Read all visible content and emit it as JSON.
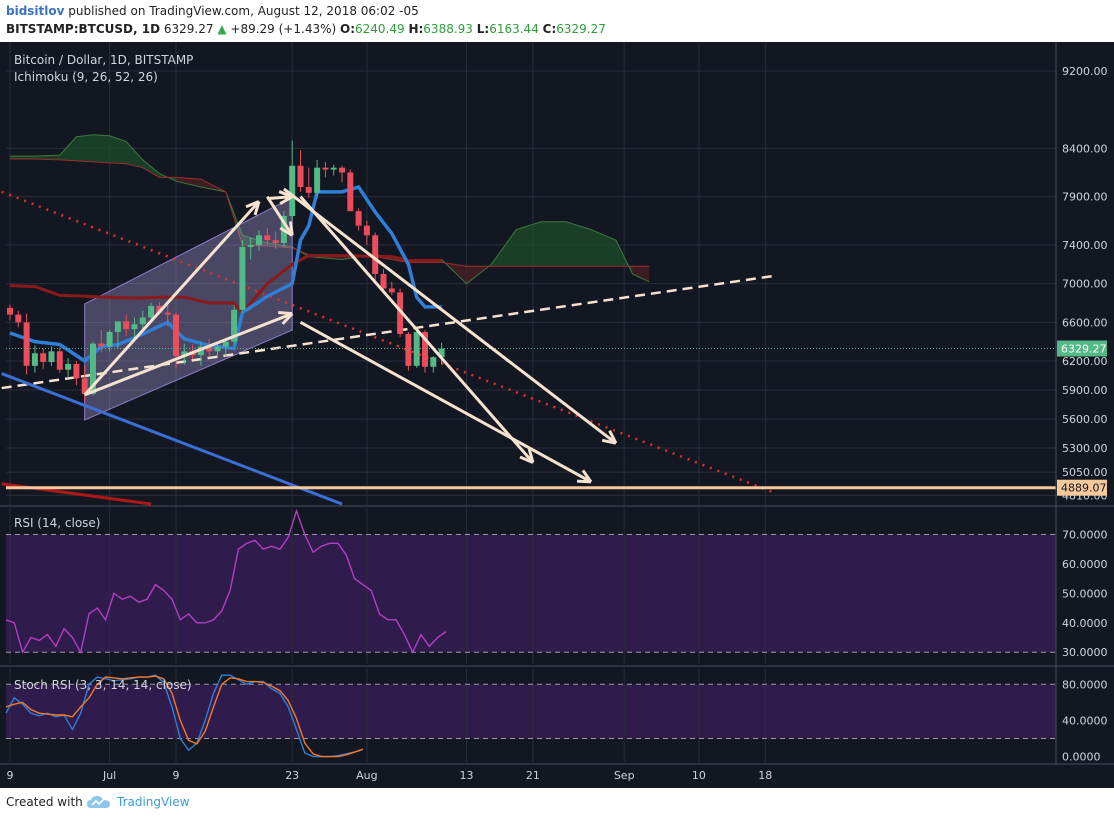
{
  "header": {
    "author": "bidsitlov",
    "published": "published on TradingView.com, August 12, 2018 06:02 -05",
    "symbol": "BITSTAMP:BTCUSD, 1D",
    "price": "6329.27",
    "change": "+89.29 (+1.43%)",
    "open_label": "O:",
    "open": "6240.49",
    "high_label": "H:",
    "high": "6388.93",
    "low_label": "L:",
    "low": "6163.44",
    "close_label": "C:",
    "close": "6329.27"
  },
  "footer": {
    "created": "Created with",
    "brand": "TradingView"
  },
  "colors": {
    "background": "#131722",
    "grid": "#2a2e39",
    "bull": "#53b987",
    "bear": "#eb4d5c",
    "tenkan": "#2f7ed8",
    "kijun": "#8b1a1a",
    "cloud_bull": "#1e4d2b",
    "cloud_bear": "#4d1f24",
    "rsi": "#b33fbf",
    "stoch_k": "#2f7ed8",
    "stoch_d": "#f07b2b",
    "support": "#f5c99b",
    "annotation": "#f6e3cf",
    "channel": "#b0a0e0"
  },
  "chart_data": [
    {
      "type": "candlestick",
      "title": "Bitcoin / Dollar, 1D, BITSTAMP",
      "indicator": "Ichimoku (9, 26, 52, 26)",
      "y_ticks": [
        9200,
        8400,
        7900,
        7400,
        7000,
        6600,
        6200,
        5900,
        5600,
        5300,
        5050,
        4810
      ],
      "ylim": [
        4700,
        9500
      ],
      "x_ticks": [
        {
          "label": "9",
          "day": 0
        },
        {
          "label": "Jul",
          "day": 12
        },
        {
          "label": "9",
          "day": 20
        },
        {
          "label": "23",
          "day": 34
        },
        {
          "label": "Aug",
          "day": 43
        },
        {
          "label": "13",
          "day": 55
        },
        {
          "label": "21",
          "day": 63
        },
        {
          "label": "Sep",
          "day": 74
        },
        {
          "label": "10",
          "day": 83
        },
        {
          "label": "18",
          "day": 91
        }
      ],
      "last_price": {
        "value": 6329.27,
        "label": "6329.27"
      },
      "support": {
        "value": 4889.07,
        "label": "4889.07"
      },
      "candles": [
        [
          6750,
          6780,
          6620,
          6680
        ],
        [
          6680,
          6720,
          6550,
          6600
        ],
        [
          6600,
          6690,
          6060,
          6150
        ],
        [
          6150,
          6360,
          6080,
          6280
        ],
        [
          6280,
          6330,
          6120,
          6190
        ],
        [
          6190,
          6350,
          6150,
          6300
        ],
        [
          6300,
          6340,
          6080,
          6110
        ],
        [
          6110,
          6230,
          6020,
          6170
        ],
        [
          6170,
          6200,
          5950,
          6020
        ],
        [
          6020,
          6150,
          5780,
          5860
        ],
        [
          5860,
          6400,
          5840,
          6380
        ],
        [
          6380,
          6520,
          6290,
          6350
        ],
        [
          6350,
          6520,
          6300,
          6500
        ],
        [
          6500,
          6600,
          6330,
          6610
        ],
        [
          6610,
          6680,
          6460,
          6530
        ],
        [
          6530,
          6650,
          6420,
          6580
        ],
        [
          6580,
          6720,
          6530,
          6650
        ],
        [
          6650,
          6800,
          6630,
          6770
        ],
        [
          6770,
          6810,
          6680,
          6700
        ],
        [
          6700,
          6780,
          6560,
          6680
        ],
        [
          6680,
          6700,
          6120,
          6250
        ],
        [
          6250,
          6380,
          6160,
          6300
        ],
        [
          6300,
          6370,
          6220,
          6260
        ],
        [
          6260,
          6400,
          6150,
          6350
        ],
        [
          6350,
          6430,
          6240,
          6300
        ],
        [
          6300,
          6380,
          6250,
          6350
        ],
        [
          6350,
          6420,
          6250,
          6400
        ],
        [
          6400,
          6780,
          6370,
          6730
        ],
        [
          6730,
          7450,
          6700,
          7380
        ],
        [
          7380,
          7480,
          7250,
          7400
        ],
        [
          7400,
          7550,
          7340,
          7500
        ],
        [
          7500,
          7580,
          7400,
          7450
        ],
        [
          7450,
          7540,
          7360,
          7420
        ],
        [
          7420,
          7750,
          7380,
          7700
        ],
        [
          7700,
          8480,
          7650,
          8220
        ],
        [
          8220,
          8380,
          7950,
          8000
        ],
        [
          8000,
          8200,
          7890,
          7940
        ],
        [
          7940,
          8280,
          7880,
          8200
        ],
        [
          8200,
          8260,
          8100,
          8180
        ],
        [
          8180,
          8230,
          8120,
          8200
        ],
        [
          8200,
          8220,
          8050,
          8150
        ],
        [
          8150,
          8180,
          7750,
          7750
        ],
        [
          7750,
          7780,
          7550,
          7600
        ],
        [
          7600,
          7650,
          7400,
          7500
        ],
        [
          7500,
          7530,
          7040,
          7100
        ],
        [
          7100,
          7150,
          6900,
          6950
        ],
        [
          6950,
          7020,
          6880,
          6910
        ],
        [
          6910,
          6950,
          6450,
          6480
        ],
        [
          6480,
          6500,
          6100,
          6150
        ],
        [
          6150,
          6550,
          6130,
          6500
        ],
        [
          6500,
          6520,
          6080,
          6140
        ],
        [
          6140,
          6250,
          6080,
          6240
        ],
        [
          6240,
          6389,
          6163,
          6329
        ]
      ],
      "tenkan": [
        [
          0,
          6490
        ],
        [
          3,
          6400
        ],
        [
          6,
          6370
        ],
        [
          9,
          6200
        ],
        [
          11,
          6350
        ],
        [
          13,
          6370
        ],
        [
          15,
          6440
        ],
        [
          17,
          6520
        ],
        [
          19,
          6600
        ],
        [
          21,
          6430
        ],
        [
          24,
          6360
        ],
        [
          27,
          6330
        ],
        [
          28,
          6700
        ],
        [
          31,
          6870
        ],
        [
          34,
          7000
        ],
        [
          35,
          7450
        ],
        [
          36,
          7600
        ],
        [
          37,
          7950
        ],
        [
          40,
          7950
        ],
        [
          42,
          8000
        ],
        [
          44,
          7740
        ],
        [
          46,
          7520
        ],
        [
          48,
          7200
        ],
        [
          49,
          6860
        ],
        [
          50,
          6760
        ],
        [
          51,
          6760
        ],
        [
          52,
          6760
        ]
      ],
      "kijun": [
        [
          0,
          6980
        ],
        [
          3,
          6970
        ],
        [
          6,
          6880
        ],
        [
          9,
          6870
        ],
        [
          12,
          6860
        ],
        [
          15,
          6850
        ],
        [
          18,
          6860
        ],
        [
          21,
          6860
        ],
        [
          24,
          6800
        ],
        [
          27,
          6800
        ],
        [
          28,
          6700
        ],
        [
          31,
          7000
        ],
        [
          34,
          7200
        ],
        [
          36,
          7290
        ],
        [
          38,
          7290
        ],
        [
          41,
          7290
        ],
        [
          44,
          7280
        ],
        [
          46,
          7280
        ],
        [
          48,
          7240
        ],
        [
          50,
          7240
        ],
        [
          52,
          7240
        ]
      ],
      "cloud_a": [
        [
          0,
          8320
        ],
        [
          3,
          8320
        ],
        [
          6,
          8330
        ],
        [
          8,
          8520
        ],
        [
          10,
          8540
        ],
        [
          12,
          8530
        ],
        [
          14,
          8470
        ],
        [
          16,
          8280
        ],
        [
          18,
          8140
        ],
        [
          20,
          8060
        ],
        [
          23,
          8000
        ],
        [
          26,
          7950
        ],
        [
          28,
          7500
        ],
        [
          31,
          7420
        ],
        [
          34,
          7380
        ],
        [
          36,
          7280
        ],
        [
          40,
          7250
        ],
        [
          44,
          7300
        ],
        [
          48,
          7250
        ],
        [
          52,
          7250
        ],
        [
          55,
          7000
        ],
        [
          58,
          7200
        ],
        [
          61,
          7560
        ],
        [
          64,
          7640
        ],
        [
          67,
          7640
        ],
        [
          70,
          7560
        ],
        [
          73,
          7450
        ],
        [
          75,
          7100
        ],
        [
          77,
          7020
        ]
      ],
      "cloud_b": [
        [
          0,
          8290
        ],
        [
          3,
          8290
        ],
        [
          6,
          8280
        ],
        [
          8,
          8270
        ],
        [
          10,
          8260
        ],
        [
          12,
          8250
        ],
        [
          14,
          8240
        ],
        [
          16,
          8200
        ],
        [
          18,
          8100
        ],
        [
          20,
          8100
        ],
        [
          23,
          8080
        ],
        [
          26,
          7950
        ],
        [
          28,
          7400
        ],
        [
          31,
          7390
        ],
        [
          34,
          7370
        ],
        [
          36,
          7300
        ],
        [
          40,
          7280
        ],
        [
          44,
          7280
        ],
        [
          48,
          7220
        ],
        [
          52,
          7220
        ],
        [
          55,
          7180
        ],
        [
          58,
          7180
        ],
        [
          61,
          7180
        ],
        [
          64,
          7180
        ],
        [
          67,
          7180
        ],
        [
          70,
          7180
        ],
        [
          73,
          7180
        ],
        [
          75,
          7180
        ],
        [
          77,
          7180
        ]
      ],
      "lines": [
        {
          "name": "resistance-dotted",
          "style": "dotted",
          "color": "#e03030",
          "points": [
            [
              -1,
              7950
            ],
            [
              92,
              4840
            ]
          ]
        },
        {
          "name": "uptrend-dashed",
          "style": "dashed",
          "color": "#f6e3cf",
          "points": [
            [
              -1,
              5920
            ],
            [
              92,
              7080
            ]
          ]
        },
        {
          "name": "blue-trend",
          "style": "solid",
          "color": "#3a6fd6",
          "points": [
            [
              -1,
              6070
            ],
            [
              40,
              4720
            ]
          ]
        },
        {
          "name": "red-trend",
          "style": "solid",
          "color": "#b01818",
          "points": [
            [
              -1,
              4930
            ],
            [
              17,
              4720
            ]
          ]
        }
      ],
      "channel": [
        [
          9,
          6790
        ],
        [
          34,
          7890
        ],
        [
          34,
          6520
        ],
        [
          9,
          5590
        ]
      ],
      "arrows": [
        [
          [
            9,
            5850
          ],
          [
            30,
            7850
          ]
        ],
        [
          [
            9,
            5850
          ],
          [
            34,
            6690
          ]
        ],
        [
          [
            31,
            7900
          ],
          [
            34,
            7500
          ]
        ],
        [
          [
            35,
            7900
          ],
          [
            63,
            5150
          ]
        ],
        [
          [
            35,
            6600
          ],
          [
            70,
            4950
          ]
        ],
        [
          [
            31,
            7880
          ],
          [
            34,
            7900
          ]
        ],
        [
          [
            33,
            7980
          ],
          [
            73,
            5350
          ]
        ]
      ]
    },
    {
      "type": "line",
      "title": "RSI (14, close)",
      "y_ticks": [
        70,
        60,
        50,
        40,
        30
      ],
      "ylim": [
        26,
        79
      ],
      "band": [
        30,
        70
      ],
      "series": [
        {
          "values": [
            41,
            40,
            30,
            35,
            34,
            36,
            32,
            38,
            35,
            30,
            43,
            45,
            41,
            50,
            48,
            49,
            47,
            48,
            53,
            51,
            48,
            41,
            43,
            40,
            40,
            41,
            44,
            51,
            65,
            67,
            68,
            65,
            66,
            65,
            69,
            78,
            70,
            64,
            66,
            67,
            67,
            63,
            55,
            53,
            51,
            43,
            41,
            41,
            36,
            30,
            36,
            32,
            35,
            37
          ]
        }
      ]
    },
    {
      "type": "line",
      "title": "Stoch RSI (3, 3, 14, 14, close)",
      "y_ticks": [
        80,
        40,
        0
      ],
      "tick_labels": [
        "80.0000",
        "40.0000",
        "0.0000"
      ],
      "ylim": [
        -6,
        98
      ],
      "band": [
        20,
        80
      ],
      "series": [
        {
          "values": [
            48,
            65,
            58,
            48,
            45,
            48,
            44,
            46,
            30,
            48,
            80,
            88,
            86,
            84,
            85,
            86,
            88,
            88,
            90,
            82,
            55,
            20,
            7,
            15,
            40,
            70,
            90,
            90,
            85,
            80,
            83,
            83,
            75,
            70,
            55,
            30,
            4,
            0,
            0,
            0,
            1,
            3,
            5,
            8
          ]
        },
        {
          "values": [
            55,
            58,
            60,
            52,
            48,
            47,
            46,
            46,
            44,
            55,
            65,
            80,
            88,
            87,
            86,
            87,
            88,
            88,
            89,
            86,
            70,
            40,
            18,
            14,
            28,
            55,
            80,
            87,
            86,
            83,
            83,
            82,
            78,
            73,
            62,
            42,
            15,
            3,
            0,
            0,
            0,
            2,
            5,
            8
          ]
        }
      ]
    }
  ]
}
